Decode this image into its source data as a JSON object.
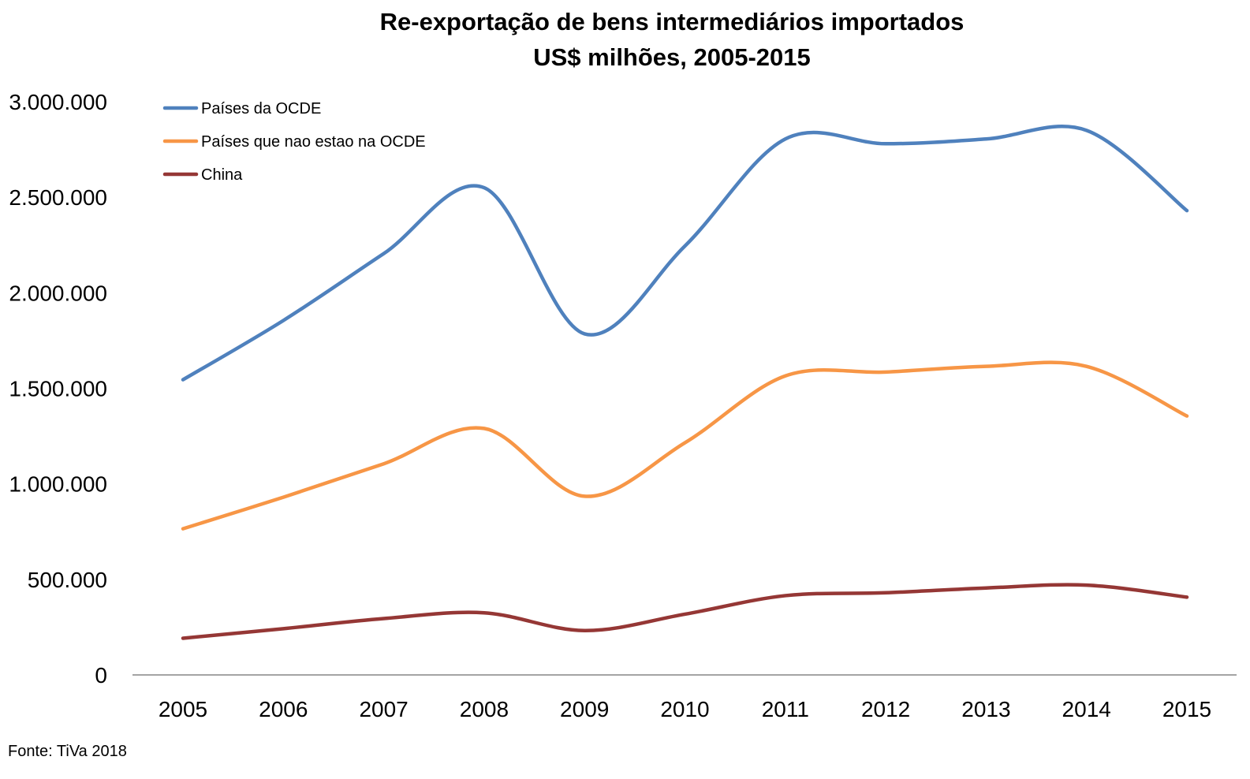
{
  "chart_data": {
    "type": "line",
    "title": "Re-exportação de bens intermediários importados",
    "subtitle": "US$ milhões, 2005-2015",
    "xlabel": "",
    "ylabel": "",
    "categories": [
      "2005",
      "2006",
      "2007",
      "2008",
      "2009",
      "2010",
      "2011",
      "2012",
      "2013",
      "2014",
      "2015"
    ],
    "ylim": [
      0,
      3000000
    ],
    "yticks": [
      0,
      500000,
      1000000,
      1500000,
      2000000,
      2500000,
      3000000
    ],
    "ytick_labels": [
      "0",
      "500.000",
      "1.000.000",
      "1.500.000",
      "2.000.000",
      "2.500.000",
      "3.000.000"
    ],
    "grid": false,
    "smooth": true,
    "legend_position": "top-left",
    "series": [
      {
        "name": "Países da OCDE",
        "color": "#4F81BD",
        "values": [
          1545000,
          1855000,
          2205000,
          2550000,
          1785000,
          2245000,
          2805000,
          2780000,
          2805000,
          2850000,
          2430000
        ]
      },
      {
        "name": "Países que nao estao na OCDE",
        "color": "#F79646",
        "values": [
          765000,
          930000,
          1105000,
          1290000,
          935000,
          1215000,
          1565000,
          1585000,
          1615000,
          1615000,
          1355000
        ]
      },
      {
        "name": "China",
        "color": "#953735",
        "values": [
          192000,
          242000,
          295000,
          325000,
          232000,
          318000,
          415000,
          430000,
          455000,
          470000,
          407000
        ]
      }
    ],
    "source": "Fonte: TiVa 2018"
  }
}
